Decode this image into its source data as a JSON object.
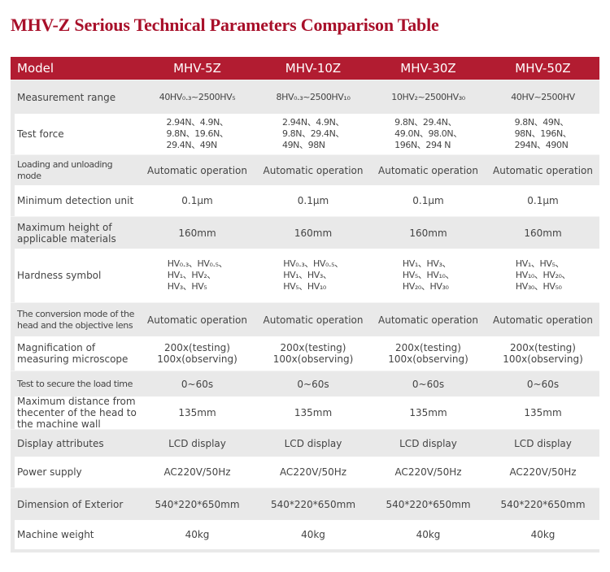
{
  "title": "MHV-Z Serious Technical Parameters Comparison Table",
  "colors": {
    "header_bg": "#b21c31",
    "title": "#a8102a",
    "row_gray": "#e9e9e9",
    "row_white": "#ffffff"
  },
  "header": [
    "Model",
    "MHV-5Z",
    "MHV-10Z",
    "MHV-30Z",
    "MHV-50Z"
  ],
  "rows": [
    {
      "label": "Measurement range",
      "values": [
        "40HV₀.₃~2500HV₅",
        "8HV₀.₃~2500HV₁₀",
        "10HV₂~2500HV₃₀",
        "40HV~2500HV"
      ]
    },
    {
      "label": "Test force",
      "values": [
        [
          "2.94N、4.9N、",
          "9.8N、19.6N、",
          "29.4N、49N"
        ],
        [
          "2.94N、4.9N、",
          "9.8N、29.4N、",
          "49N、98N"
        ],
        [
          "9.8N、29.4N、",
          "49.0N、98.0N、",
          "196N、294 N"
        ],
        [
          "9.8N、49N、",
          "98N、196N、",
          "294N、490N"
        ]
      ]
    },
    {
      "label": "Loading and unloading mode",
      "values": [
        "Automatic operation",
        "Automatic operation",
        "Automatic operation",
        "Automatic operation"
      ]
    },
    {
      "label": "Minimum detection unit",
      "values": [
        "0.1μm",
        "0.1μm",
        "0.1μm",
        "0.1μm"
      ]
    },
    {
      "label": [
        "Maximum height of",
        "applicable materials"
      ],
      "values": [
        "160mm",
        "160mm",
        "160mm",
        "160mm"
      ]
    },
    {
      "label": "Hardness symbol",
      "values": [
        [
          "HV₀.₃、HV₀.₅、",
          "HV₁、HV₂、",
          "HV₃、HV₅"
        ],
        [
          "HV₀.₃、HV₀.₅、",
          "HV₁、HV₃、",
          "HV₅、HV₁₀"
        ],
        [
          "HV₁、HV₃、",
          "HV₅、HV₁₀、",
          "HV₂₀、HV₃₀"
        ],
        [
          "HV₁、HV₅、",
          "HV₁₀、HV₂₀、",
          "HV₃₀、HV₅₀"
        ]
      ]
    },
    {
      "label": [
        "The conversion mode of the",
        "head and the objective lens"
      ],
      "values": [
        "Automatic operation",
        "Automatic operation",
        "Automatic operation",
        "Automatic operation"
      ]
    },
    {
      "label": [
        "Magnification of",
        "measuring microscope"
      ],
      "values": [
        [
          "200x(testing)",
          "100x(observing)"
        ],
        [
          "200x(testing)",
          "100x(observing)"
        ],
        [
          "200x(testing)",
          "100x(observing)"
        ],
        [
          "200x(testing)",
          "100x(observing)"
        ]
      ]
    },
    {
      "label": "Test to secure the load time",
      "values": [
        "0~60s",
        "0~60s",
        "0~60s",
        "0~60s"
      ]
    },
    {
      "label": [
        "Maximum distance from",
        "thecenter of the head to",
        "the machine wall"
      ],
      "values": [
        "135mm",
        "135mm",
        "135mm",
        "135mm"
      ]
    },
    {
      "label": "Display attributes",
      "values": [
        "LCD display",
        "LCD display",
        "LCD display",
        "LCD display"
      ]
    },
    {
      "label": "Power supply",
      "values": [
        "AC220V/50Hz",
        "AC220V/50Hz",
        "AC220V/50Hz",
        "AC220V/50Hz"
      ]
    },
    {
      "label": "Dimension of Exterior",
      "values": [
        "540*220*650mm",
        "540*220*650mm",
        "540*220*650mm",
        "540*220*650mm"
      ]
    },
    {
      "label": "Machine weight",
      "values": [
        "40kg",
        "40kg",
        "40kg",
        "40kg"
      ]
    }
  ]
}
